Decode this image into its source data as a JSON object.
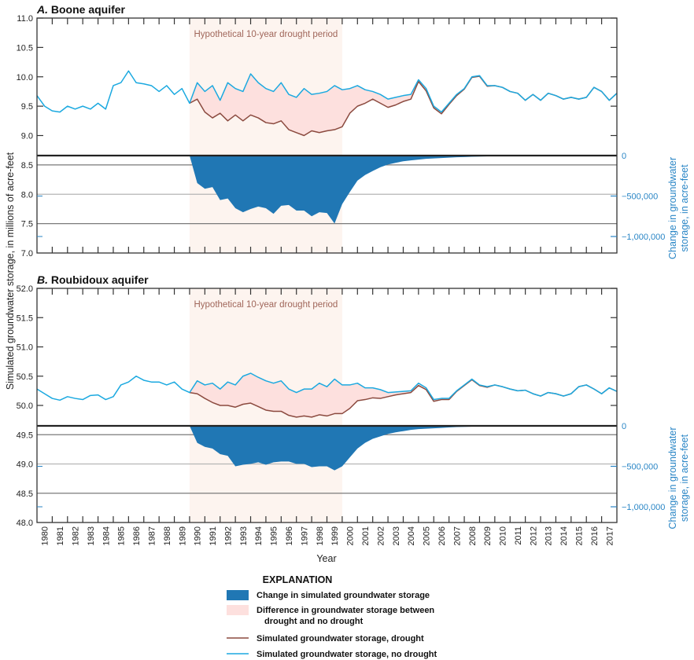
{
  "chart_data": [
    {
      "type": "line",
      "title": "A. Boone aquifer",
      "title_letter": "A.",
      "title_name": "Boone aquifer",
      "ylabel": "Simulated groundwater storage, in millions of acre-feet",
      "ylabel_right": [
        "Change in groundwater",
        "storage, in acre-feet"
      ],
      "xlabel": "Year",
      "ylim": [
        7.0,
        11.0
      ],
      "yticks": [
        "7.0",
        "7.5",
        "8.0",
        "8.5",
        "9.0",
        "9.5",
        "10.0",
        "10.5",
        "11.0"
      ],
      "yticks_right": [
        "0",
        "−500,000",
        "−1,000,000"
      ],
      "yticks_right_values": [
        0,
        -500000,
        -1000000
      ],
      "xlim": [
        1980,
        2018
      ],
      "annotation": "Hypothetical 10-year drought period",
      "drought_period": [
        1990,
        2000
      ],
      "x_start": 1980,
      "x_step": 0.5,
      "series": [
        {
          "name": "Simulated groundwater storage, no drought",
          "units": "millions of acre-feet",
          "color": "#1ba9e0",
          "values": [
            9.68,
            9.5,
            9.42,
            9.4,
            9.5,
            9.45,
            9.5,
            9.45,
            9.55,
            9.45,
            9.85,
            9.9,
            10.1,
            9.9,
            9.88,
            9.85,
            9.75,
            9.85,
            9.7,
            9.8,
            9.55,
            9.9,
            9.75,
            9.85,
            9.6,
            9.9,
            9.8,
            9.75,
            10.05,
            9.9,
            9.8,
            9.75,
            9.9,
            9.7,
            9.65,
            9.8,
            9.7,
            9.72,
            9.75,
            9.85,
            9.78,
            9.8,
            9.85,
            9.78,
            9.75,
            9.7,
            9.62,
            9.65,
            9.68,
            9.7,
            9.95,
            9.8,
            9.5,
            9.4,
            9.55,
            9.7,
            9.8,
            10.0,
            10.02,
            9.85,
            9.85,
            9.82,
            9.75,
            9.72,
            9.6,
            9.7,
            9.6,
            9.72,
            9.68,
            9.62,
            9.65,
            9.62,
            9.65,
            9.82,
            9.75,
            9.6,
            9.72
          ]
        },
        {
          "name": "Simulated groundwater storage, drought",
          "units": "millions of acre-feet",
          "color": "#8b4a3f",
          "values": [
            null,
            null,
            null,
            null,
            null,
            null,
            null,
            null,
            null,
            null,
            null,
            null,
            null,
            null,
            null,
            null,
            null,
            null,
            null,
            null,
            9.55,
            9.62,
            9.4,
            9.3,
            9.38,
            9.25,
            9.35,
            9.25,
            9.35,
            9.3,
            9.22,
            9.2,
            9.25,
            9.1,
            9.05,
            9.0,
            9.08,
            9.05,
            9.08,
            9.1,
            9.15,
            9.38,
            9.5,
            9.55,
            9.62,
            9.55,
            9.48,
            9.52,
            9.58,
            9.62,
            9.92,
            9.76,
            9.47,
            9.37,
            9.53,
            9.68,
            9.79,
            9.99,
            10.01,
            9.84,
            9.85,
            9.82,
            9.75,
            9.72,
            9.6,
            9.7,
            9.6,
            9.72,
            9.68,
            9.62,
            9.65,
            9.62,
            9.65,
            9.82,
            9.75,
            9.6,
            9.72
          ]
        },
        {
          "name": "Change in simulated groundwater storage",
          "units": "acre-feet",
          "color": "#2077b4",
          "values": [
            null,
            null,
            null,
            null,
            null,
            null,
            null,
            null,
            null,
            null,
            null,
            null,
            null,
            null,
            null,
            null,
            null,
            null,
            null,
            null,
            0,
            -340000,
            -410000,
            -390000,
            -550000,
            -530000,
            -650000,
            -700000,
            -660000,
            -630000,
            -650000,
            -720000,
            -620000,
            -610000,
            -680000,
            -680000,
            -750000,
            -700000,
            -710000,
            -840000,
            -600000,
            -450000,
            -310000,
            -240000,
            -190000,
            -145000,
            -110000,
            -90000,
            -70000,
            -60000,
            -50000,
            -40000,
            -35000,
            -30000,
            -25000,
            -21000,
            -18000,
            -15000,
            -12000,
            -10000,
            -8000,
            -7000,
            -5000,
            -4000,
            -3000,
            -3000,
            -2000,
            -2000,
            -1500,
            -1500,
            -1000,
            -1000,
            -1000,
            -500,
            -500,
            -500,
            -500
          ]
        }
      ]
    },
    {
      "type": "line",
      "title": "B. Roubidoux aquifer",
      "title_letter": "B.",
      "title_name": "Roubidoux aquifer",
      "ylabel": "Simulated groundwater storage, in millions of acre-feet",
      "ylabel_right": [
        "Change in groundwater",
        "storage, in acre-feet"
      ],
      "xlabel": "Year",
      "ylim": [
        48.0,
        52.0
      ],
      "yticks": [
        "48.0",
        "48.5",
        "49.0",
        "49.5",
        "50.0",
        "50.5",
        "51.0",
        "51.5",
        "52.0"
      ],
      "yticks_right": [
        "0",
        "−500,000",
        "−1,000,000"
      ],
      "yticks_right_values": [
        0,
        -500000,
        -1000000
      ],
      "xlim": [
        1980,
        2018
      ],
      "xticklabels": [
        "1980",
        "1981",
        "1982",
        "1983",
        "1984",
        "1985",
        "1986",
        "1987",
        "1988",
        "1989",
        "1990",
        "1991",
        "1992",
        "1993",
        "1994",
        "1995",
        "1996",
        "1997",
        "1998",
        "1999",
        "2000",
        "2001",
        "2002",
        "2003",
        "2004",
        "2005",
        "2006",
        "2007",
        "2008",
        "2009",
        "2010",
        "2011",
        "2012",
        "2013",
        "2014",
        "2015",
        "2016",
        "2017"
      ],
      "annotation": "Hypothetical 10-year drought period",
      "drought_period": [
        1990,
        2000
      ],
      "x_start": 1980,
      "x_step": 0.5,
      "series": [
        {
          "name": "Simulated groundwater storage, no drought",
          "units": "millions of acre-feet",
          "color": "#1ba9e0",
          "values": [
            50.28,
            50.2,
            50.12,
            50.09,
            50.15,
            50.12,
            50.1,
            50.17,
            50.18,
            50.1,
            50.15,
            50.35,
            50.4,
            50.5,
            50.43,
            50.4,
            50.4,
            50.35,
            50.4,
            50.28,
            50.22,
            50.42,
            50.35,
            50.38,
            50.28,
            50.4,
            50.35,
            50.5,
            50.55,
            50.48,
            50.42,
            50.38,
            50.42,
            50.28,
            50.22,
            50.28,
            50.28,
            50.38,
            50.32,
            50.45,
            50.35,
            50.35,
            50.38,
            50.3,
            50.3,
            50.27,
            50.22,
            50.23,
            50.24,
            50.25,
            50.38,
            50.3,
            50.1,
            50.12,
            50.12,
            50.25,
            50.35,
            50.45,
            50.35,
            50.32,
            50.35,
            50.32,
            50.28,
            50.25,
            50.26,
            50.2,
            50.16,
            50.22,
            50.2,
            50.16,
            50.2,
            50.32,
            50.35,
            50.28,
            50.2,
            50.3,
            50.24
          ]
        },
        {
          "name": "Simulated groundwater storage, drought",
          "units": "millions of acre-feet",
          "color": "#8b4a3f",
          "values": [
            null,
            null,
            null,
            null,
            null,
            null,
            null,
            null,
            null,
            null,
            null,
            null,
            null,
            null,
            null,
            null,
            null,
            null,
            null,
            null,
            50.22,
            50.2,
            50.12,
            50.05,
            50.0,
            50.0,
            49.97,
            50.02,
            50.04,
            49.98,
            49.92,
            49.9,
            49.9,
            49.83,
            49.8,
            49.82,
            49.8,
            49.84,
            49.82,
            49.86,
            49.86,
            49.95,
            50.08,
            50.1,
            50.13,
            50.12,
            50.15,
            50.18,
            50.2,
            50.22,
            50.34,
            50.27,
            50.07,
            50.1,
            50.1,
            50.24,
            50.34,
            50.44,
            50.34,
            50.31,
            50.35,
            50.32,
            50.28,
            50.25,
            50.26,
            50.2,
            50.16,
            50.22,
            50.2,
            50.16,
            50.2,
            50.32,
            50.35,
            50.28,
            50.2,
            50.3,
            50.24
          ]
        },
        {
          "name": "Change in simulated groundwater storage",
          "units": "acre-feet",
          "color": "#2077b4",
          "values": [
            null,
            null,
            null,
            null,
            null,
            null,
            null,
            null,
            null,
            null,
            null,
            null,
            null,
            null,
            null,
            null,
            null,
            null,
            null,
            null,
            0,
            -210000,
            -260000,
            -280000,
            -350000,
            -370000,
            -500000,
            -480000,
            -470000,
            -450000,
            -480000,
            -450000,
            -440000,
            -440000,
            -470000,
            -470000,
            -510000,
            -500000,
            -500000,
            -550000,
            -500000,
            -390000,
            -280000,
            -210000,
            -160000,
            -130000,
            -100000,
            -80000,
            -65000,
            -50000,
            -40000,
            -35000,
            -30000,
            -25000,
            -20000,
            -15000,
            -12000,
            -10000,
            -8000,
            -6000,
            -5000,
            -4000,
            -3000,
            -2500,
            -2000,
            -1500,
            -1000,
            -1000,
            -500,
            -500,
            -500,
            -500,
            0,
            0,
            0,
            0,
            0
          ]
        }
      ]
    }
  ],
  "legend": {
    "title": "EXPLANATION",
    "items": [
      {
        "label": "Change in simulated groundwater storage",
        "color": "#2077b4"
      },
      {
        "label": "Difference in groundwater storage between",
        "label2": "drought and no drought",
        "color": "#fde0de"
      },
      {
        "label": "Simulated groundwater storage, drought",
        "color": "#8b4a3f"
      },
      {
        "label": "Simulated groundwater storage, no drought",
        "color": "#1ba9e0"
      }
    ]
  },
  "colors": {
    "drought_band": "#fdf4ef",
    "difference_fill": "#fde0de",
    "right_axis": "#2a86c6"
  }
}
